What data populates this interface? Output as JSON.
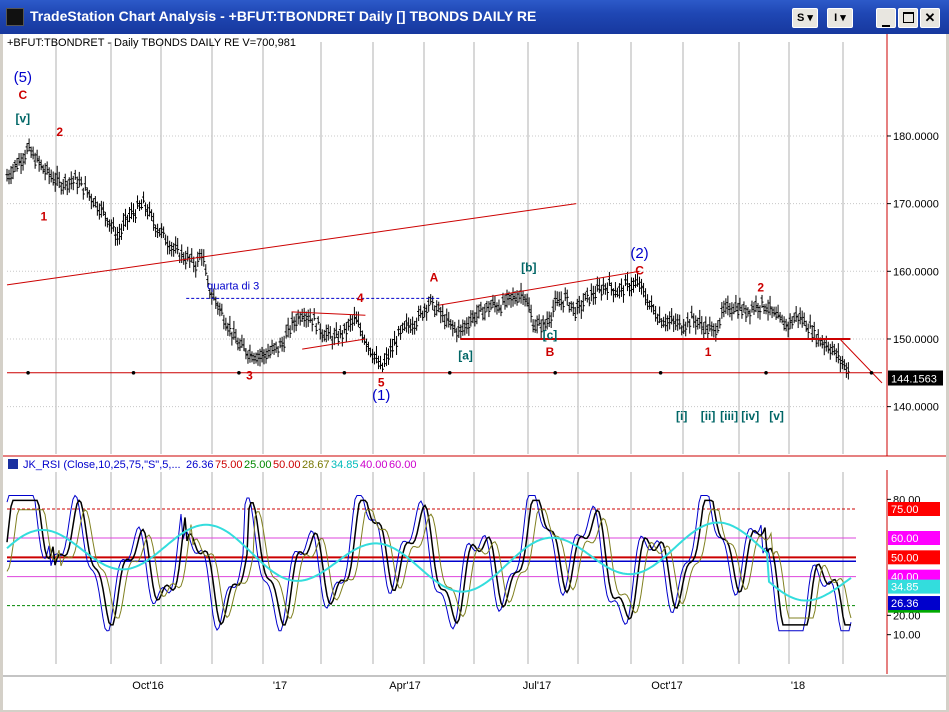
{
  "window": {
    "title": "TradeStation Chart Analysis - +BFUT:TBONDRET Daily [] TBONDS DAILY RE",
    "buttons": {
      "s_label": "S",
      "i_label": "I"
    }
  },
  "price_header": "+BFUT:TBONDRET - Daily  TBONDS DAILY RE  V=700,981",
  "rsi_header": {
    "title": "JK_RSI (Close,10,25,75,\"S\",5,...",
    "values": [
      {
        "text": "26.36",
        "color": "#0000cc"
      },
      {
        "text": "75.00",
        "color": "#cc0000"
      },
      {
        "text": "25.00",
        "color": "#008800"
      },
      {
        "text": "50.00",
        "color": "#cc0000"
      },
      {
        "text": "28.67",
        "color": "#777700"
      },
      {
        "text": "34.85",
        "color": "#00bbbb"
      },
      {
        "text": "40.00",
        "color": "#cc00cc"
      },
      {
        "text": "60.00",
        "color": "#cc00cc"
      }
    ]
  },
  "colors": {
    "bar": "#000000",
    "redline": "#cc0000",
    "blue": "#0000cc",
    "teal": "#006666",
    "cyan": "#33dddd",
    "magenta": "#dd44dd",
    "olive": "#808020",
    "green": "#008800"
  },
  "chart_data": [
    {
      "type": "ohlc",
      "title": "+BFUT:TBONDRET - Daily  TBONDS DAILY RE",
      "x_labels": [
        "Oct'16",
        "'17",
        "Apr'17",
        "Jul'17",
        "Oct'17",
        "'18"
      ],
      "y_ticks": [
        140,
        150,
        160,
        170,
        180
      ],
      "y_tick_labels": [
        "140.0000",
        "150.0000",
        "160.0000",
        "170.0000",
        "180.0000"
      ],
      "ylim": [
        133,
        193
      ],
      "last_value": 144.1563,
      "last_value_label": "144.1563",
      "price_path": [
        [
          0,
          174
        ],
        [
          4,
          178
        ],
        [
          7,
          175
        ],
        [
          10,
          173
        ],
        [
          13,
          173.5
        ],
        [
          15,
          172
        ],
        [
          17,
          170
        ],
        [
          19,
          168
        ],
        [
          21,
          165
        ],
        [
          23,
          168
        ],
        [
          26,
          170
        ],
        [
          28,
          167
        ],
        [
          30,
          165
        ],
        [
          32,
          163
        ],
        [
          34,
          162
        ],
        [
          36,
          161
        ],
        [
          37,
          163
        ],
        [
          38,
          158
        ],
        [
          40,
          155
        ],
        [
          42,
          152
        ],
        [
          44,
          149
        ],
        [
          46,
          148
        ],
        [
          48,
          147.5
        ],
        [
          50,
          148
        ],
        [
          52,
          149
        ],
        [
          54,
          152
        ],
        [
          56,
          154
        ],
        [
          58,
          153
        ],
        [
          60,
          151
        ],
        [
          62,
          150
        ],
        [
          64,
          151
        ],
        [
          66,
          153
        ],
        [
          68,
          150
        ],
        [
          70,
          147
        ],
        [
          71,
          145.5
        ],
        [
          72,
          147
        ],
        [
          74,
          150
        ],
        [
          76,
          152
        ],
        [
          78,
          153
        ],
        [
          80,
          155.5
        ],
        [
          82,
          154
        ],
        [
          84,
          152
        ],
        [
          86,
          151
        ],
        [
          88,
          153
        ],
        [
          90,
          154
        ],
        [
          92,
          155
        ],
        [
          94,
          155
        ],
        [
          96,
          156
        ],
        [
          98,
          157
        ],
        [
          100,
          152
        ],
        [
          102,
          152
        ],
        [
          104,
          155
        ],
        [
          106,
          156
        ],
        [
          108,
          154
        ],
        [
          110,
          156
        ],
        [
          112,
          157
        ],
        [
          114,
          158
        ],
        [
          116,
          157
        ],
        [
          118,
          158
        ],
        [
          120,
          158
        ],
        [
          122,
          155
        ],
        [
          124,
          153
        ],
        [
          126,
          152.5
        ],
        [
          128,
          152
        ],
        [
          130,
          153
        ],
        [
          132,
          152
        ],
        [
          134,
          151
        ],
        [
          136,
          154
        ],
        [
          138,
          155
        ],
        [
          140,
          154
        ],
        [
          142,
          155
        ],
        [
          144,
          155
        ],
        [
          146,
          153
        ],
        [
          148,
          152
        ],
        [
          150,
          153.5
        ],
        [
          152,
          152
        ],
        [
          154,
          150
        ],
        [
          156,
          149
        ],
        [
          158,
          147
        ],
        [
          160,
          145
        ]
      ],
      "price_x_max": 160,
      "trendlines": [
        {
          "name": "upper-trendline",
          "from": [
            0,
            158
          ],
          "to": [
            108,
            170
          ]
        },
        {
          "name": "channel-top",
          "from": [
            82,
            155
          ],
          "to": [
            120,
            160
          ]
        },
        {
          "name": "support-150",
          "from": [
            86,
            150
          ],
          "to": [
            160,
            150
          ]
        },
        {
          "name": "support-145",
          "from": [
            0,
            145
          ],
          "to": [
            166,
            145
          ]
        },
        {
          "name": "breakdown-line",
          "from": [
            158,
            150
          ],
          "to": [
            166,
            143.5
          ]
        },
        {
          "name": "triangle-top",
          "from": [
            54,
            154
          ],
          "to": [
            68,
            153.5
          ]
        },
        {
          "name": "triangle-bottom",
          "from": [
            56,
            148.5
          ],
          "to": [
            68,
            150
          ]
        }
      ],
      "quarta_line": {
        "from": [
          34,
          156
        ],
        "to": [
          82,
          156
        ],
        "label": "quarta di 3"
      },
      "annotations": [
        {
          "text": "(5)",
          "x": 3,
          "y": 188,
          "color": "#0000cc",
          "size": 15
        },
        {
          "text": "C",
          "x": 3,
          "y": 185.5,
          "color": "#cc0000",
          "size": 12
        },
        {
          "text": "[v]",
          "x": 3,
          "y": 182,
          "color": "#006666",
          "size": 12
        },
        {
          "text": "2",
          "x": 10,
          "y": 180,
          "color": "#cc0000",
          "size": 12
        },
        {
          "text": "1",
          "x": 7,
          "y": 167.5,
          "color": "#cc0000",
          "size": 12
        },
        {
          "text": "3",
          "x": 46,
          "y": 144,
          "color": "#cc0000",
          "size": 12
        },
        {
          "text": "4",
          "x": 67,
          "y": 155.5,
          "color": "#cc0000",
          "size": 12
        },
        {
          "text": "5",
          "x": 71,
          "y": 143,
          "color": "#cc0000",
          "size": 12
        },
        {
          "text": "(1)",
          "x": 71,
          "y": 141,
          "color": "#0000cc",
          "size": 15
        },
        {
          "text": "A",
          "x": 81,
          "y": 158.5,
          "color": "#cc0000",
          "size": 12
        },
        {
          "text": "[a]",
          "x": 87,
          "y": 147,
          "color": "#006666",
          "size": 12
        },
        {
          "text": "[b]",
          "x": 99,
          "y": 160,
          "color": "#006666",
          "size": 12
        },
        {
          "text": "[c]",
          "x": 103,
          "y": 150,
          "color": "#006666",
          "size": 12
        },
        {
          "text": "B",
          "x": 103,
          "y": 147.5,
          "color": "#cc0000",
          "size": 12
        },
        {
          "text": "(2)",
          "x": 120,
          "y": 162,
          "color": "#0000cc",
          "size": 15
        },
        {
          "text": "C",
          "x": 120,
          "y": 159.5,
          "color": "#cc0000",
          "size": 12
        },
        {
          "text": "1",
          "x": 133,
          "y": 147.5,
          "color": "#cc0000",
          "size": 12
        },
        {
          "text": "2",
          "x": 143,
          "y": 157,
          "color": "#cc0000",
          "size": 12
        },
        {
          "text": "[i]",
          "x": 128,
          "y": 138,
          "color": "#006666",
          "size": 12
        },
        {
          "text": "[ii]",
          "x": 133,
          "y": 138,
          "color": "#006666",
          "size": 12
        },
        {
          "text": "[iii]",
          "x": 137,
          "y": 138,
          "color": "#006666",
          "size": 12
        },
        {
          "text": "[iv]",
          "x": 141,
          "y": 138,
          "color": "#006666",
          "size": 12
        },
        {
          "text": "[v]",
          "x": 146,
          "y": 138,
          "color": "#006666",
          "size": 12
        }
      ],
      "quarta_label": "quarta di 3"
    },
    {
      "type": "line",
      "title": "JK_RSI (Close,10,25,75,\"S\",5,...",
      "y_ticks": [
        10,
        20,
        80
      ],
      "y_tick_labels": [
        "10.00",
        "20.00",
        "80.00"
      ],
      "ylim": [
        0,
        90
      ],
      "levels": [
        {
          "name": "level-75",
          "value": 75,
          "label": "75.00",
          "color": "#cc0000",
          "style": "dash",
          "box": "#ff0000"
        },
        {
          "name": "level-60",
          "value": 60,
          "label": "60.00",
          "color": "#dd44dd",
          "style": "solid",
          "box": "#ff00ff"
        },
        {
          "name": "level-50",
          "value": 50,
          "label": "50.00",
          "color": "#cc0000",
          "style": "solid-thick",
          "box": "#ff0000"
        },
        {
          "name": "level-40",
          "value": 40,
          "label": "40.00",
          "color": "#dd44dd",
          "style": "solid",
          "box": "#ff00ff"
        },
        {
          "name": "level-25",
          "value": 25,
          "label": "25.00",
          "color": "#008800",
          "style": "dash",
          "box": "#00aa00"
        }
      ],
      "horizontal_blue": 48,
      "extra_value_labels": [
        {
          "text": "34.85",
          "value": 34.85,
          "box": "#33dddd"
        },
        {
          "text": "26.36",
          "value": 26.36,
          "box": "#0000cc"
        }
      ],
      "series": [
        {
          "name": "RSI",
          "color": "#0000cc"
        },
        {
          "name": "Signal",
          "color": "#000000"
        },
        {
          "name": "Smooth",
          "color": "#33dddd"
        }
      ]
    }
  ]
}
